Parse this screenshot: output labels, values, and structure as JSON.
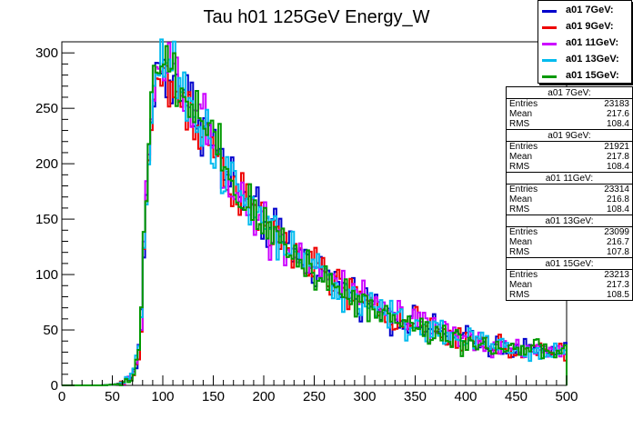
{
  "chart_data": {
    "type": "line",
    "title": "Tau h01 125GeV Energy_W",
    "xlabel": "",
    "ylabel": "",
    "xlim": [
      0,
      500
    ],
    "ylim": [
      0,
      310
    ],
    "xticks": [
      "0",
      "50",
      "100",
      "150",
      "200",
      "250",
      "300",
      "350",
      "400",
      "450",
      "500"
    ],
    "yticks": [
      "0",
      "50",
      "100",
      "150",
      "200",
      "250",
      "300"
    ],
    "bin_width": 2.5,
    "x": [
      0,
      20,
      40,
      55,
      60,
      65,
      70,
      75,
      78,
      80,
      82,
      85,
      88,
      90,
      93,
      95,
      98,
      100,
      103,
      105,
      108,
      110,
      113,
      115,
      118,
      120,
      125,
      130,
      135,
      140,
      145,
      150,
      155,
      160,
      165,
      170,
      175,
      180,
      190,
      200,
      210,
      220,
      230,
      240,
      250,
      260,
      270,
      280,
      290,
      300,
      310,
      320,
      330,
      340,
      350,
      360,
      370,
      380,
      390,
      400,
      410,
      420,
      430,
      440,
      450,
      460,
      470,
      480,
      490,
      500
    ],
    "series": [
      {
        "name": "a01 7GeV:",
        "color": "#0000cc",
        "values": [
          0,
          0,
          0,
          1,
          2,
          5,
          8,
          20,
          50,
          85,
          150,
          195,
          230,
          258,
          272,
          280,
          285,
          290,
          285,
          278,
          275,
          282,
          275,
          270,
          268,
          265,
          258,
          252,
          245,
          238,
          228,
          220,
          210,
          200,
          190,
          183,
          175,
          168,
          157,
          148,
          138,
          130,
          123,
          115,
          107,
          100,
          93,
          88,
          82,
          77,
          72,
          67,
          63,
          59,
          55,
          52,
          49,
          46,
          44,
          42,
          40,
          38,
          36,
          35,
          34,
          32,
          31,
          30,
          30,
          30
        ]
      },
      {
        "name": "a01 9GeV:",
        "color": "#ee0000",
        "values": [
          0,
          0,
          0,
          1,
          2,
          4,
          7,
          18,
          48,
          80,
          140,
          185,
          225,
          250,
          262,
          270,
          275,
          278,
          272,
          268,
          265,
          270,
          265,
          262,
          258,
          255,
          250,
          245,
          238,
          232,
          222,
          214,
          205,
          196,
          187,
          180,
          172,
          165,
          155,
          146,
          136,
          128,
          121,
          113,
          105,
          98,
          92,
          86,
          80,
          75,
          70,
          66,
          62,
          58,
          54,
          51,
          48,
          45,
          43,
          41,
          39,
          37,
          35,
          34,
          33,
          32,
          31,
          30,
          29,
          29
        ]
      },
      {
        "name": "a01 11GeV:",
        "color": "#cc00ff",
        "values": [
          0,
          0,
          0,
          1,
          2,
          5,
          8,
          21,
          52,
          88,
          152,
          198,
          235,
          262,
          276,
          284,
          288,
          292,
          286,
          280,
          276,
          280,
          273,
          268,
          264,
          260,
          255,
          248,
          242,
          235,
          226,
          218,
          208,
          198,
          189,
          181,
          174,
          167,
          156,
          147,
          137,
          129,
          122,
          114,
          106,
          99,
          93,
          87,
          81,
          76,
          71,
          67,
          63,
          59,
          55,
          52,
          49,
          46,
          44,
          42,
          40,
          38,
          36,
          35,
          34,
          33,
          32,
          31,
          30,
          30
        ]
      },
      {
        "name": "a01 13GeV:",
        "color": "#00bbee",
        "values": [
          0,
          0,
          0,
          1,
          2,
          5,
          9,
          22,
          53,
          87,
          150,
          196,
          232,
          260,
          274,
          282,
          287,
          290,
          284,
          279,
          275,
          278,
          272,
          267,
          263,
          259,
          253,
          247,
          241,
          234,
          225,
          217,
          207,
          197,
          188,
          180,
          173,
          166,
          155,
          146,
          136,
          128,
          121,
          113,
          105,
          98,
          92,
          86,
          80,
          75,
          70,
          66,
          62,
          58,
          54,
          51,
          48,
          45,
          43,
          41,
          39,
          37,
          35,
          34,
          33,
          32,
          31,
          30,
          29,
          29
        ]
      },
      {
        "name": "a01 15GeV:",
        "color": "#009900",
        "values": [
          0,
          0,
          0,
          1,
          2,
          5,
          8,
          20,
          50,
          86,
          148,
          194,
          232,
          262,
          278,
          288,
          294,
          296,
          290,
          282,
          278,
          276,
          270,
          268,
          262,
          258,
          254,
          248,
          240,
          234,
          224,
          216,
          206,
          196,
          188,
          180,
          172,
          165,
          154,
          145,
          135,
          127,
          120,
          112,
          104,
          97,
          91,
          85,
          79,
          74,
          69,
          65,
          61,
          57,
          53,
          50,
          47,
          44,
          42,
          40,
          38,
          36,
          35,
          34,
          33,
          32,
          31,
          30,
          29,
          29
        ]
      }
    ]
  },
  "legend": [
    {
      "label": "a01 7GeV:",
      "color": "#0000cc"
    },
    {
      "label": "a01 9GeV:",
      "color": "#ee0000"
    },
    {
      "label": "a01 11GeV:",
      "color": "#cc00ff"
    },
    {
      "label": "a01 13GeV:",
      "color": "#00bbee"
    },
    {
      "label": "a01 15GeV:",
      "color": "#009900"
    }
  ],
  "stats": [
    {
      "title": "a01 7GeV:",
      "entries_label": "Entries",
      "entries": "23183",
      "mean_label": "Mean",
      "mean": "217.6",
      "rms_label": "RMS",
      "rms": "108.4"
    },
    {
      "title": "a01 9GeV:",
      "entries_label": "Entries",
      "entries": "21921",
      "mean_label": "Mean",
      "mean": "217.8",
      "rms_label": "RMS",
      "rms": "108.4"
    },
    {
      "title": "a01 11GeV:",
      "entries_label": "Entries",
      "entries": "23314",
      "mean_label": "Mean",
      "mean": "216.8",
      "rms_label": "RMS",
      "rms": "108.4"
    },
    {
      "title": "a01 13GeV:",
      "entries_label": "Entries",
      "entries": "23099",
      "mean_label": "Mean",
      "mean": "216.7",
      "rms_label": "RMS",
      "rms": "107.8"
    },
    {
      "title": "a01 15GeV:",
      "entries_label": "Entries",
      "entries": "23213",
      "mean_label": "Mean",
      "mean": "217.3",
      "rms_label": "RMS",
      "rms": "108.5"
    }
  ]
}
